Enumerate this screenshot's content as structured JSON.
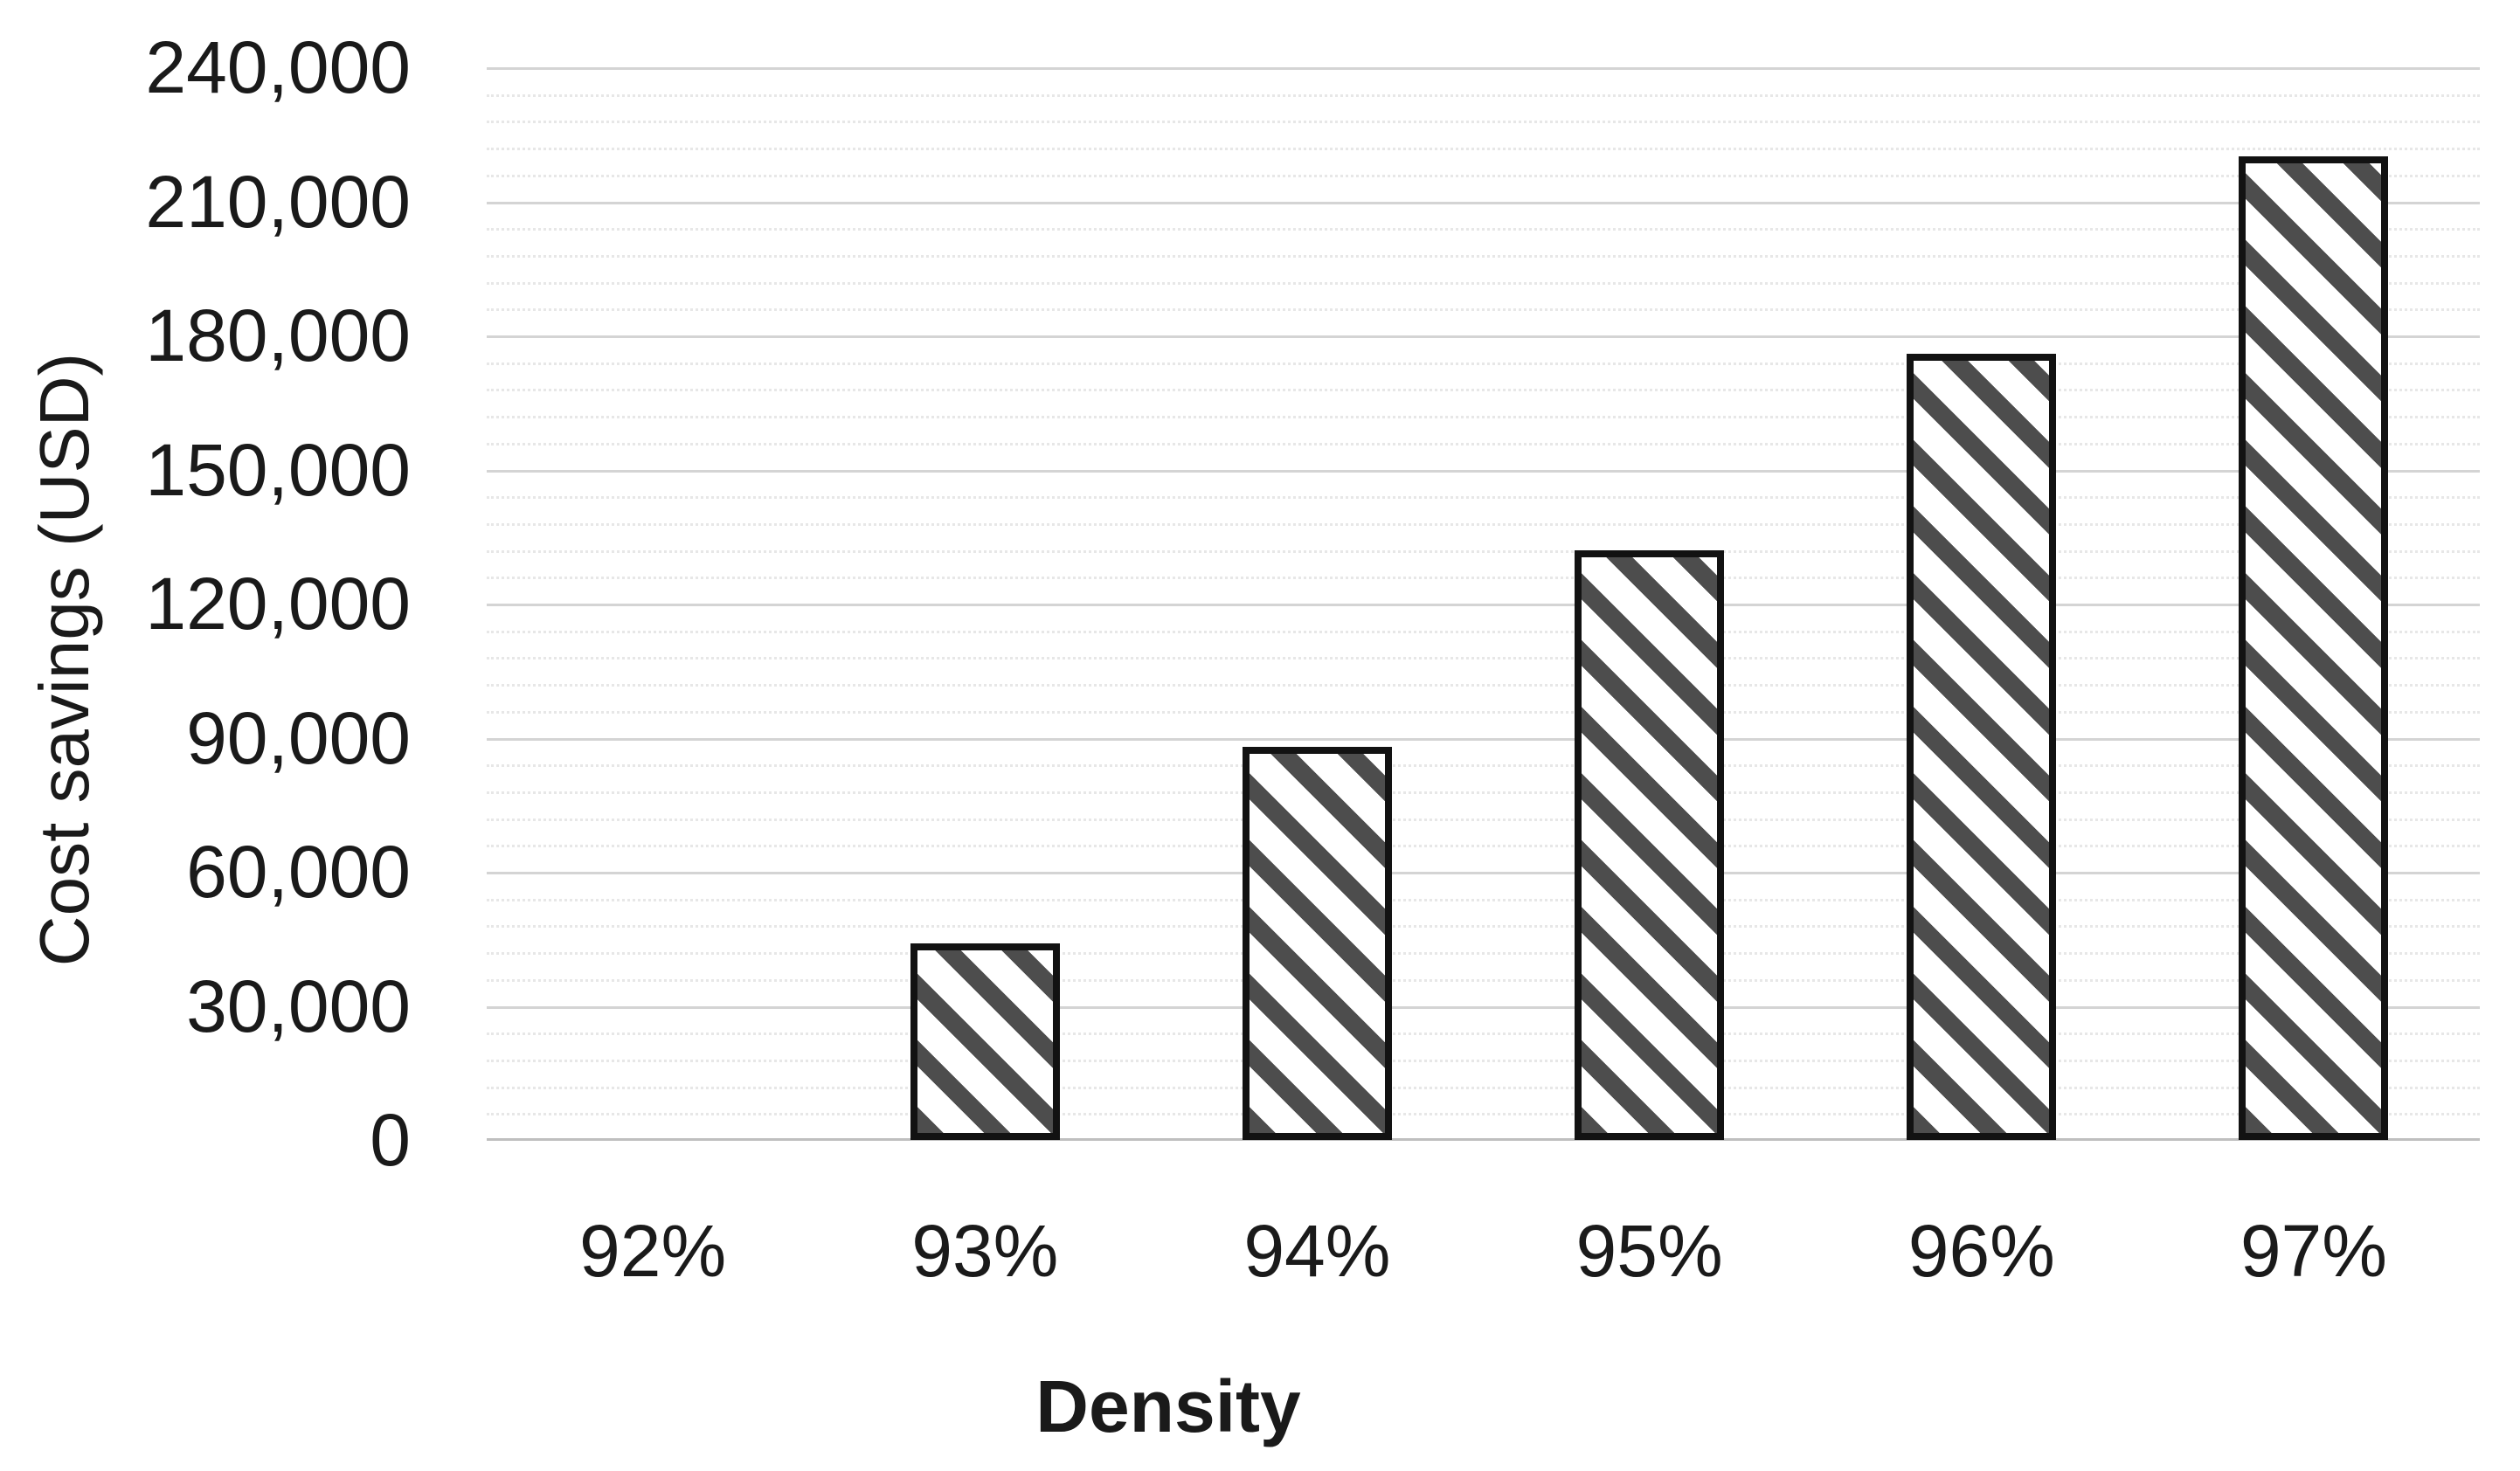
{
  "page": {
    "background": "#ffffff"
  },
  "chart_data": {
    "type": "bar",
    "title": "",
    "categories": [
      "92%",
      "93%",
      "94%",
      "95%",
      "96%",
      "97%"
    ],
    "values": [
      0,
      44000,
      88000,
      132000,
      176000,
      220000
    ],
    "xlabel": "Density",
    "ylabel": "Cost savings (USD)",
    "ylim": [
      0,
      240000
    ],
    "y_major_step": 30000,
    "y_minor_step": 6000,
    "y_tick_labels": [
      "0",
      "30,000",
      "60,000",
      "90,000",
      "120,000",
      "150,000",
      "180,000",
      "210,000",
      "240,000"
    ],
    "grid": true,
    "legend": false,
    "bar_pattern": "wide-downward-diagonal-hatch",
    "colors": {
      "bar_fill": "#ffffff",
      "bar_hatch": "#4d4d4d",
      "bar_border": "#121212",
      "grid_major": "#d4d4d4",
      "grid_minor": "#e7e7e7",
      "grid_baseline": "#bfbfbf",
      "text": "#1a1a1a"
    }
  }
}
